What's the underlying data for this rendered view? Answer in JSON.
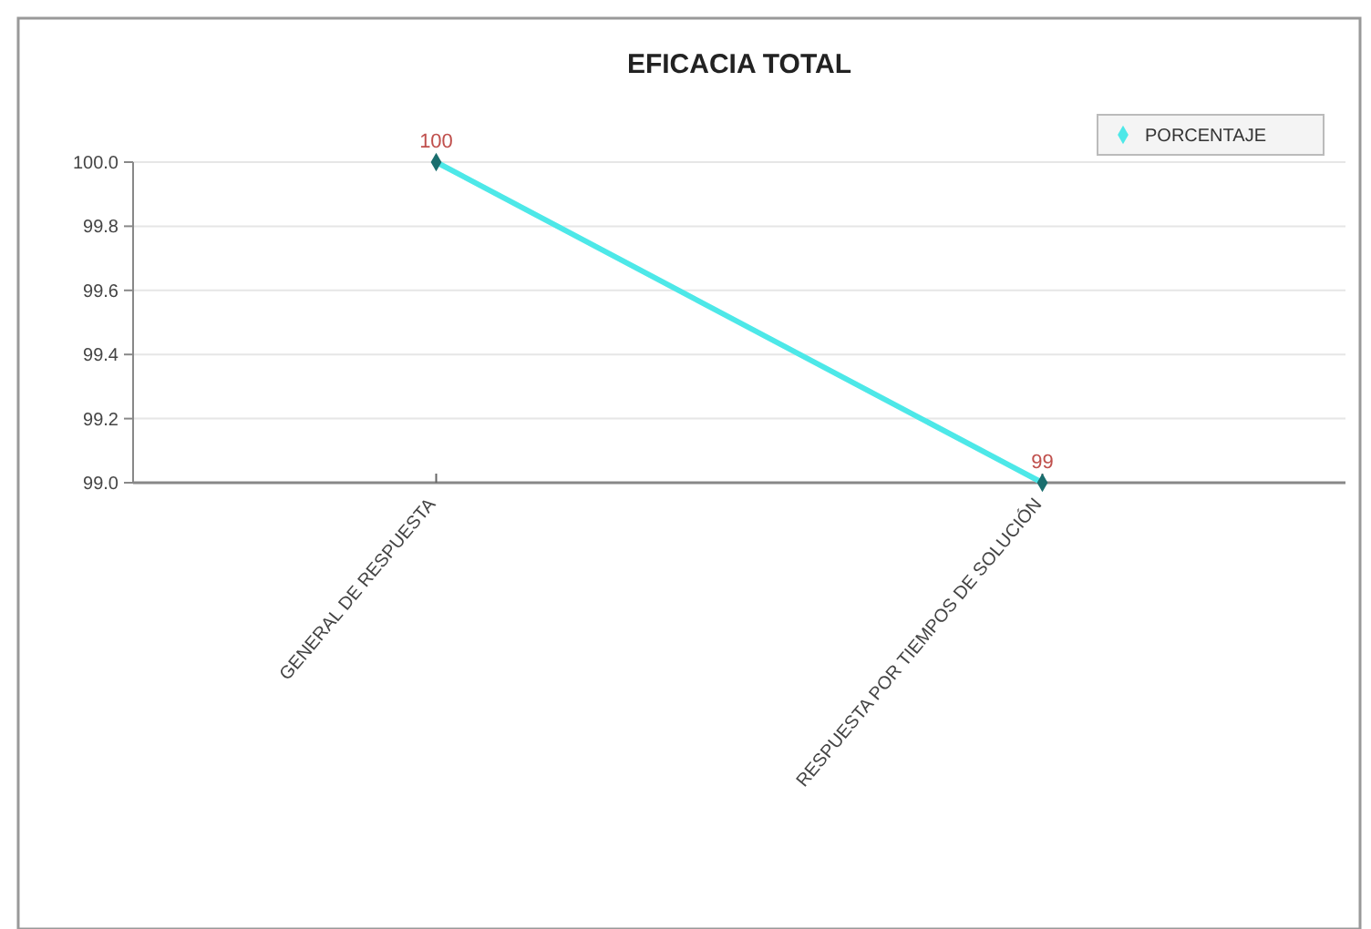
{
  "chart_data": {
    "type": "line",
    "title": "EFICACIA TOTAL",
    "categories": [
      "GENERAL DE RESPUESTA",
      "RESPUESTA POR TIEMPOS DE SOLUCIÓN"
    ],
    "series": [
      {
        "name": "PORCENTAJE",
        "color": "#4de8e8",
        "values": [
          100,
          99
        ]
      }
    ],
    "ylim": [
      99,
      100
    ],
    "yticks": [
      {
        "value": 99,
        "label": "99.0"
      },
      {
        "value": 99.2,
        "label": "99.2"
      },
      {
        "value": 99.4,
        "label": "99.4"
      },
      {
        "value": 99.6,
        "label": "99.6"
      },
      {
        "value": 99.8,
        "label": "99.8"
      },
      {
        "value": 100,
        "label": "100.0"
      }
    ],
    "grid": "y",
    "legend": "top right",
    "marker": "diamond",
    "data_labels": true
  }
}
